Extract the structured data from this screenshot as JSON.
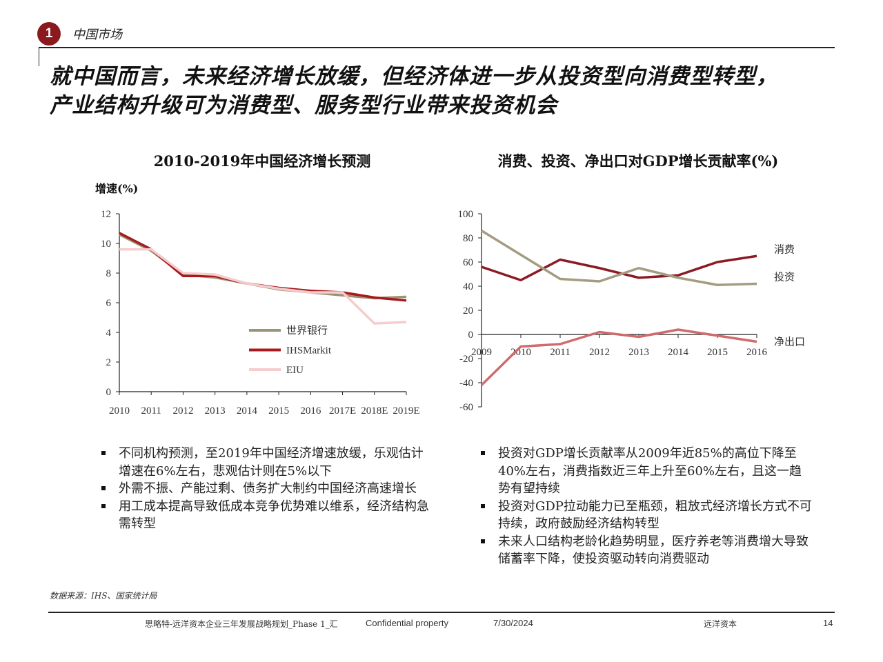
{
  "header": {
    "badge": "1",
    "section": "中国市场",
    "title_line1": "就中国而言，未来经济增长放缓，但经济体进一步从投资型向消费型转型，",
    "title_line2": "产业结构升级可为消费型、服务型行业带来投资机会"
  },
  "chart_data": [
    {
      "type": "line",
      "title": "2010-2019年中国经济增长预测",
      "ylabel": "增速(%)",
      "ylim": [
        0,
        12
      ],
      "yticks": [
        0,
        2,
        4,
        6,
        8,
        10,
        12
      ],
      "legend": "inside-bottom-right",
      "categories": [
        "2010",
        "2011",
        "2012",
        "2013",
        "2014",
        "2015",
        "2016",
        "2017E",
        "2018E",
        "2019E"
      ],
      "series": [
        {
          "name": "世界银行",
          "color": "#9a9477",
          "values": [
            10.6,
            9.5,
            7.9,
            7.7,
            7.3,
            6.9,
            6.7,
            6.5,
            6.3,
            6.4
          ]
        },
        {
          "name": "IHSMarkit",
          "color": "#a8191e",
          "values": [
            10.7,
            9.6,
            7.8,
            7.8,
            7.3,
            7.0,
            6.8,
            6.7,
            6.35,
            6.15
          ]
        },
        {
          "name": "EIU",
          "color": "#f6cccc",
          "values": [
            9.6,
            9.6,
            8.0,
            7.9,
            7.3,
            6.95,
            6.7,
            6.7,
            4.6,
            4.7
          ]
        }
      ]
    },
    {
      "type": "line",
      "title": "消费、投资、净出口对GDP增长贡献率(%)",
      "ylim": [
        -60,
        100
      ],
      "yticks": [
        -60,
        -40,
        -20,
        0,
        20,
        40,
        60,
        80,
        100
      ],
      "legend": "series-end-labels",
      "categories": [
        "2009",
        "2010",
        "2011",
        "2012",
        "2013",
        "2014",
        "2015",
        "2016"
      ],
      "series": [
        {
          "name": "消费",
          "color": "#8b1a24",
          "values": [
            56,
            45,
            62,
            55,
            47,
            49,
            60,
            65
          ]
        },
        {
          "name": "投资",
          "color": "#a39c80",
          "values": [
            86,
            66,
            46,
            44,
            55,
            47,
            41,
            42
          ]
        },
        {
          "name": "净出口",
          "color": "#d06a6c",
          "values": [
            -42,
            -10,
            -8,
            2,
            -2,
            4,
            -1,
            -6
          ]
        }
      ]
    }
  ],
  "left_bullets": [
    "不同机构预测，至2019年中国经济增速放缓，乐观估计增速在6%左右，悲观估计则在5%以下",
    "外需不振、产能过剩、债务扩大制约中国经济高速增长",
    "用工成本提高导致低成本竞争优势难以维系，经济结构急需转型"
  ],
  "right_bullets": [
    "投资对GDP增长贡献率从2009年近85%的高位下降至40%左右，消费指数近三年上升至60%左右，且这一趋势有望持续",
    "投资对GDP拉动能力已至瓶颈，粗放式经济增长方式不可持续，政府鼓励经济结构转型",
    "未来人口结构老龄化趋势明显，医疗养老等消费增大导致储蓄率下降，使投资驱动转向消费驱动"
  ],
  "source": "数据来源：IHS、国家统计局",
  "footer": {
    "doc": "思略特-远洋资本企业三年发展战略规划_Phase 1_汇",
    "confidential": "Confidential property",
    "date": "7/30/2024",
    "company": "远洋资本",
    "page": "14"
  }
}
